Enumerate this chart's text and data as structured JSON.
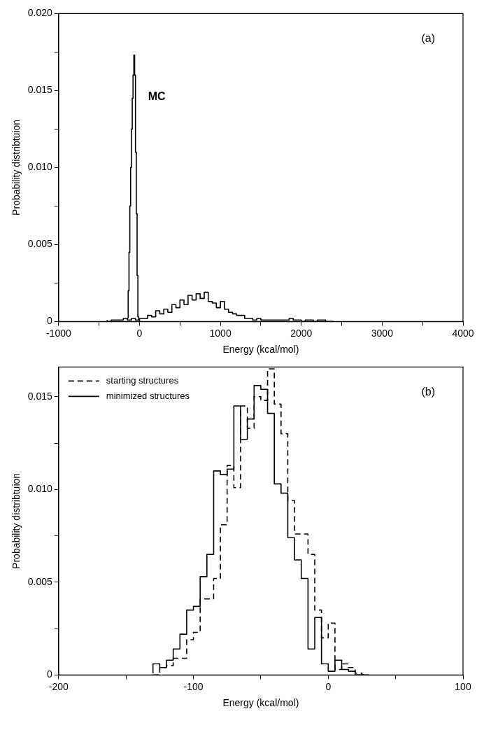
{
  "chart_data": [
    {
      "type": "step",
      "xlabel": "Energy (kcal/mol)",
      "ylabel": "Probability distribtuion",
      "annotations": [
        "(a)"
      ],
      "xlim": [
        -1000,
        4000
      ],
      "xticks": [
        -1000,
        {
          "value": -500,
          "label": null
        },
        0,
        {
          "value": 500,
          "label": null
        },
        1000,
        {
          "value": 1500,
          "label": null
        },
        2000,
        {
          "value": 2500,
          "label": null
        },
        3000,
        {
          "value": 3500,
          "label": null
        },
        4000
      ],
      "ylim": [
        0,
        0.02
      ],
      "yticks": [
        0,
        {
          "value": 0.0025,
          "label": null
        },
        {
          "value": 0.005,
          "label": "0.005"
        },
        {
          "value": 0.0075,
          "label": null
        },
        {
          "value": 0.01,
          "label": "0.010"
        },
        {
          "value": 0.0125,
          "label": null
        },
        {
          "value": 0.015,
          "label": "0.015"
        },
        {
          "value": 0.0175,
          "label": null
        },
        {
          "value": 0.02,
          "label": "0.020"
        }
      ],
      "grid": false,
      "legend": false,
      "series": [
        {
          "name": "MC",
          "color": "#000000",
          "line_style": "solid",
          "x": [
            -140,
            -130,
            -120,
            -110,
            -100,
            -90,
            -80,
            -70,
            -60,
            -50,
            -40,
            -30,
            -20,
            -10,
            0,
            10
          ],
          "values": [
            0.0002,
            0.002,
            0.0045,
            0.0075,
            0.01,
            0.0125,
            0.0145,
            0.016,
            0.0173,
            0.016,
            0.011,
            0.007,
            0.003,
            0.0003,
            0.0001,
            0
          ]
        },
        {
          "color": "#000000",
          "line_style": "solid",
          "x": [
            -400,
            -350,
            -300,
            -250,
            -200,
            -150,
            -100,
            -50,
            0,
            50,
            100,
            150,
            200,
            250,
            300,
            350,
            400,
            450,
            500,
            550,
            600,
            650,
            700,
            750,
            800,
            850,
            900,
            950,
            1000,
            1050,
            1100,
            1150,
            1200,
            1250,
            1300,
            1350,
            1400,
            1450,
            1500,
            1550,
            1600,
            1650,
            1700,
            1750,
            1800,
            1850,
            1900,
            1950,
            2000,
            2050,
            2100,
            2150,
            2200,
            2250,
            2300,
            2350,
            2400
          ],
          "values": [
            0.0001,
            0,
            0.0001,
            0.0001,
            0.0001,
            0.0002,
            0.0001,
            0.0002,
            0.0001,
            0.0002,
            0.0002,
            0.0004,
            0.0003,
            0.0007,
            0.0005,
            0.0008,
            0.0006,
            0.0011,
            0.0009,
            0.0014,
            0.0011,
            0.0017,
            0.0014,
            0.0018,
            0.0015,
            0.0019,
            0.0013,
            0.0012,
            0.0009,
            0.0013,
            0.0008,
            0.0006,
            0.0005,
            0.0004,
            0.0004,
            0.0002,
            0.0002,
            0.0001,
            0.0002,
            0.0001,
            0.0001,
            0.0001,
            0.0001,
            0.0001,
            0.0001,
            0.0001,
            0.0002,
            0.0001,
            0.0001,
            0,
            0.0001,
            0.0001,
            0,
            0.0001,
            0.0001,
            0,
            0
          ]
        }
      ]
    },
    {
      "type": "step",
      "xlabel": "Energy (kcal/mol)",
      "ylabel": "Probability distribtuion",
      "annotations": [
        "(b)"
      ],
      "xlim": [
        -200,
        100
      ],
      "xticks": [
        -200,
        {
          "value": -150,
          "label": null
        },
        -100,
        {
          "value": -50,
          "label": null
        },
        0,
        {
          "value": 50,
          "label": null
        },
        100
      ],
      "ylim": [
        0,
        0.0166
      ],
      "yticks": [
        0,
        {
          "value": 0.0025,
          "label": null
        },
        {
          "value": 0.005,
          "label": "0.005"
        },
        {
          "value": 0.0075,
          "label": null
        },
        {
          "value": 0.01,
          "label": "0.010"
        },
        {
          "value": 0.0125,
          "label": null
        },
        {
          "value": 0.015,
          "label": "0.015"
        }
      ],
      "grid": false,
      "legend": "top left",
      "series": [
        {
          "name": "starting structures",
          "color": "#000000",
          "line_style": "dashed",
          "x": [
            -130,
            -125,
            -120,
            -115,
            -110,
            -105,
            -100,
            -95,
            -90,
            -85,
            -80,
            -75,
            -70,
            -65,
            -60,
            -55,
            -50,
            -45,
            -40,
            -35,
            -30,
            -25,
            -20,
            -15,
            -10,
            -5,
            0,
            5,
            10,
            15,
            20,
            25,
            30
          ],
          "values": [
            0,
            0,
            0.0004,
            0.0005,
            0.0009,
            0.0009,
            0.0019,
            0.0023,
            0.0041,
            0.0041,
            0.0052,
            0.0081,
            0.0113,
            0.0101,
            0.0145,
            0.0133,
            0.015,
            0.0148,
            0.0165,
            0.0146,
            0.013,
            0.0094,
            0.0076,
            0.0076,
            0.0065,
            0.0035,
            0.002,
            0.0028,
            0.0003,
            0.0006,
            0.0004,
            0.0001,
            0
          ]
        },
        {
          "name": "minimized structures",
          "color": "#000000",
          "line_style": "solid",
          "x": [
            -130,
            -125,
            -120,
            -115,
            -110,
            -105,
            -100,
            -95,
            -90,
            -85,
            -80,
            -75,
            -70,
            -65,
            -60,
            -55,
            -50,
            -45,
            -40,
            -35,
            -30,
            -25,
            -20,
            -15,
            -10,
            -5,
            0,
            5,
            10,
            15,
            20,
            25,
            30
          ],
          "values": [
            0.0001,
            0.0006,
            0.0004,
            0.0008,
            0.0014,
            0.0022,
            0.0035,
            0.0037,
            0.0053,
            0.0065,
            0.011,
            0.0108,
            0.0111,
            0.0145,
            0.0127,
            0.0138,
            0.0156,
            0.0154,
            0.0141,
            0.0103,
            0.0098,
            0.0074,
            0.0062,
            0.0052,
            0.0014,
            0.0031,
            0.0006,
            0.0002,
            0.0008,
            0.0003,
            0.0002,
            0,
            0
          ]
        }
      ]
    }
  ]
}
